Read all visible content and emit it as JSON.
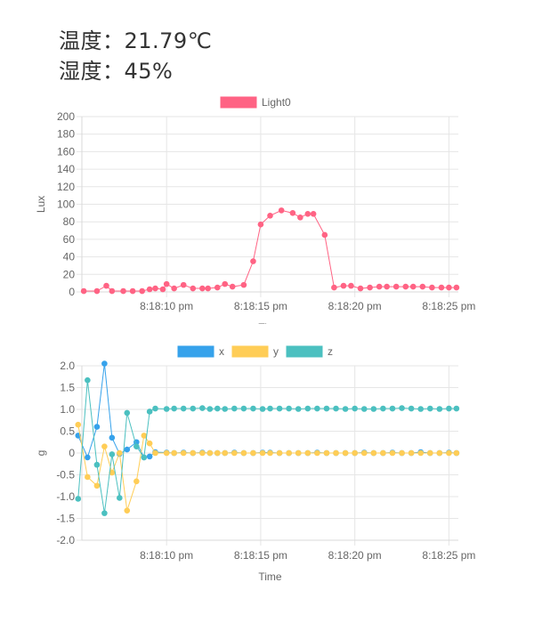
{
  "readouts": {
    "temperature": "温度：21.79℃",
    "humidity": "湿度：45%"
  },
  "chart_data": [
    {
      "type": "line",
      "xlabel": "Time",
      "ylabel": "Lux",
      "ylim": [
        0,
        200
      ],
      "yticks": [
        0,
        20,
        40,
        60,
        80,
        100,
        120,
        140,
        160,
        180,
        200
      ],
      "x_ticks": [
        "8:18:10 pm",
        "8:18:15 pm",
        "8:18:20 pm",
        "8:18:25 pm"
      ],
      "x_range_seconds": [
        "8:18:05.5 pm",
        "8:18:25.5 pm"
      ],
      "legend": "top",
      "grid": true,
      "x": [
        "20:18:05.6",
        "20:18:06.3",
        "20:18:06.8",
        "20:18:07.1",
        "20:18:07.7",
        "20:18:08.2",
        "20:18:08.7",
        "20:18:09.1",
        "20:18:09.4",
        "20:18:09.8",
        "20:18:10.0",
        "20:18:10.4",
        "20:18:10.9",
        "20:18:11.4",
        "20:18:11.9",
        "20:18:12.2",
        "20:18:12.7",
        "20:18:13.1",
        "20:18:13.5",
        "20:18:14.1",
        "20:18:14.6",
        "20:18:15.0",
        "20:18:15.5",
        "20:18:16.1",
        "20:18:16.7",
        "20:18:17.1",
        "20:18:17.5",
        "20:18:17.8",
        "20:18:18.4",
        "20:18:18.9",
        "20:18:19.4",
        "20:18:19.8",
        "20:18:20.3",
        "20:18:20.8",
        "20:18:21.3",
        "20:18:21.7",
        "20:18:22.2",
        "20:18:22.7",
        "20:18:23.1",
        "20:18:23.6",
        "20:18:24.1",
        "20:18:24.6",
        "20:18:25.0",
        "20:18:25.4"
      ],
      "series": [
        {
          "name": "Light0",
          "color": "#ff6384",
          "values": [
            1,
            1,
            7,
            1,
            1,
            1,
            1,
            3,
            4,
            3,
            9,
            4,
            8,
            4,
            4,
            4,
            5,
            9,
            6,
            8,
            35,
            77,
            87,
            93,
            90,
            85,
            89,
            89,
            65,
            5,
            7,
            7,
            4,
            5,
            6,
            6,
            6,
            6,
            6,
            6,
            5,
            5,
            5,
            5
          ]
        }
      ]
    },
    {
      "type": "line",
      "xlabel": "Time",
      "ylabel": "g",
      "ylim": [
        -2.0,
        2.0
      ],
      "yticks": [
        "-2.0",
        "-1.5",
        "-1.0",
        "-0.5",
        "0",
        "0.5",
        "1.0",
        "1.5",
        "2.0"
      ],
      "x_ticks": [
        "8:18:10 pm",
        "8:18:15 pm",
        "8:18:20 pm",
        "8:18:25 pm"
      ],
      "legend": "top",
      "grid": true,
      "x": [
        "20:18:05.3",
        "20:18:05.8",
        "20:18:06.3",
        "20:18:06.7",
        "20:18:07.1",
        "20:18:07.5",
        "20:18:07.9",
        "20:18:08.4",
        "20:18:08.8",
        "20:18:09.1",
        "20:18:09.4",
        "20:18:10.0",
        "20:18:10.4",
        "20:18:10.9",
        "20:18:11.4",
        "20:18:11.9",
        "20:18:12.3",
        "20:18:12.7",
        "20:18:13.1",
        "20:18:13.6",
        "20:18:14.1",
        "20:18:14.6",
        "20:18:15.1",
        "20:18:15.5",
        "20:18:16.0",
        "20:18:16.5",
        "20:18:17.0",
        "20:18:17.5",
        "20:18:18.0",
        "20:18:18.5",
        "20:18:19.0",
        "20:18:19.5",
        "20:18:20.0",
        "20:18:20.5",
        "20:18:21.0",
        "20:18:21.5",
        "20:18:22.0",
        "20:18:22.5",
        "20:18:23.0",
        "20:18:23.5",
        "20:18:24.0",
        "20:18:24.5",
        "20:18:25.0",
        "20:18:25.4"
      ],
      "series": [
        {
          "name": "x",
          "color": "#36a2eb",
          "values": [
            0.4,
            -0.1,
            0.6,
            2.05,
            0.35,
            -0.02,
            0.08,
            0.25,
            -0.1,
            -0.08,
            0.02,
            0.01,
            0,
            0.01,
            0,
            0.01,
            0,
            0,
            0,
            0.01,
            0,
            0,
            0.01,
            0.01,
            0,
            0,
            0,
            0,
            0.01,
            0,
            0,
            0,
            0,
            0.01,
            0,
            0,
            0.01,
            0,
            0,
            0.02,
            0,
            0,
            0.01,
            0
          ]
        },
        {
          "name": "y",
          "color": "#ffcd56",
          "values": [
            0.65,
            -0.55,
            -0.75,
            0.15,
            -0.45,
            0.0,
            -1.32,
            -0.65,
            0.4,
            0.22,
            0,
            0,
            0,
            0,
            0,
            0,
            0,
            0,
            0,
            0,
            0,
            0,
            0,
            0,
            0,
            0,
            0,
            0,
            0,
            0,
            0,
            0,
            0,
            0,
            0,
            0,
            0,
            0,
            0,
            0,
            0,
            0,
            0,
            0
          ]
        },
        {
          "name": "z",
          "color": "#4bc0c0",
          "values": [
            -1.05,
            1.67,
            -0.27,
            -1.38,
            -0.03,
            -1.03,
            0.92,
            0.15,
            -0.1,
            0.95,
            1.02,
            1.01,
            1.02,
            1.02,
            1.02,
            1.03,
            1.01,
            1.02,
            1.01,
            1.02,
            1.02,
            1.02,
            1.01,
            1.02,
            1.02,
            1.02,
            1.01,
            1.02,
            1.02,
            1.02,
            1.02,
            1.01,
            1.02,
            1.01,
            1.01,
            1.02,
            1.02,
            1.03,
            1.02,
            1.01,
            1.02,
            1.01,
            1.02,
            1.02
          ]
        }
      ]
    }
  ]
}
